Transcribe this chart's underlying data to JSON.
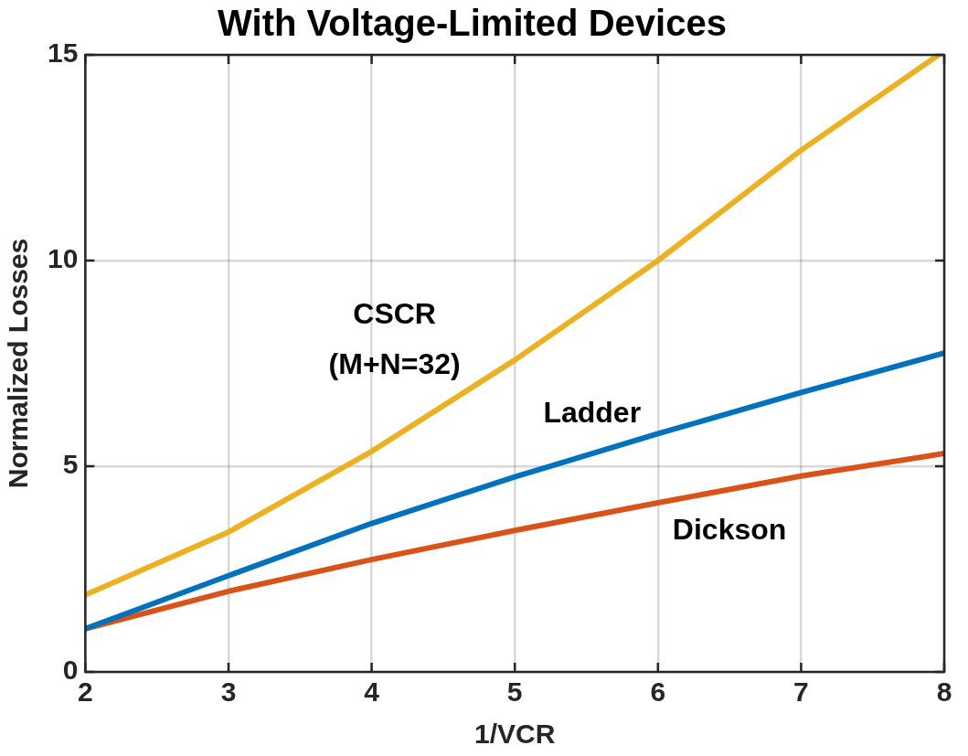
{
  "chart_data": {
    "type": "line",
    "title": "With Voltage-Limited Devices",
    "xlabel": "1/VCR",
    "ylabel": "Normalized Losses",
    "x": [
      2,
      3,
      4,
      5,
      6,
      7,
      8
    ],
    "series": [
      {
        "name": "CSCR (M+N=32)",
        "color": "#edb120",
        "x": [
          2,
          3,
          4,
          5,
          6,
          7,
          7.96
        ],
        "values": [
          1.87,
          3.4,
          5.36,
          7.58,
          10,
          12.68,
          15
        ]
      },
      {
        "name": "Ladder",
        "color": "#0072bd",
        "values": [
          1.05,
          2.34,
          3.61,
          4.74,
          5.79,
          6.79,
          7.75
        ]
      },
      {
        "name": "Dickson",
        "color": "#d95319",
        "values": [
          1.05,
          1.96,
          2.73,
          3.44,
          4.11,
          4.76,
          5.31
        ]
      }
    ],
    "xlim": [
      2,
      8
    ],
    "xticks": [
      2,
      3,
      4,
      5,
      6,
      7,
      8
    ],
    "ylim": [
      0,
      15
    ],
    "yticks": [
      0,
      5,
      10,
      15
    ],
    "grid": true,
    "legend": false,
    "marker": "none",
    "line_style": "solid"
  }
}
